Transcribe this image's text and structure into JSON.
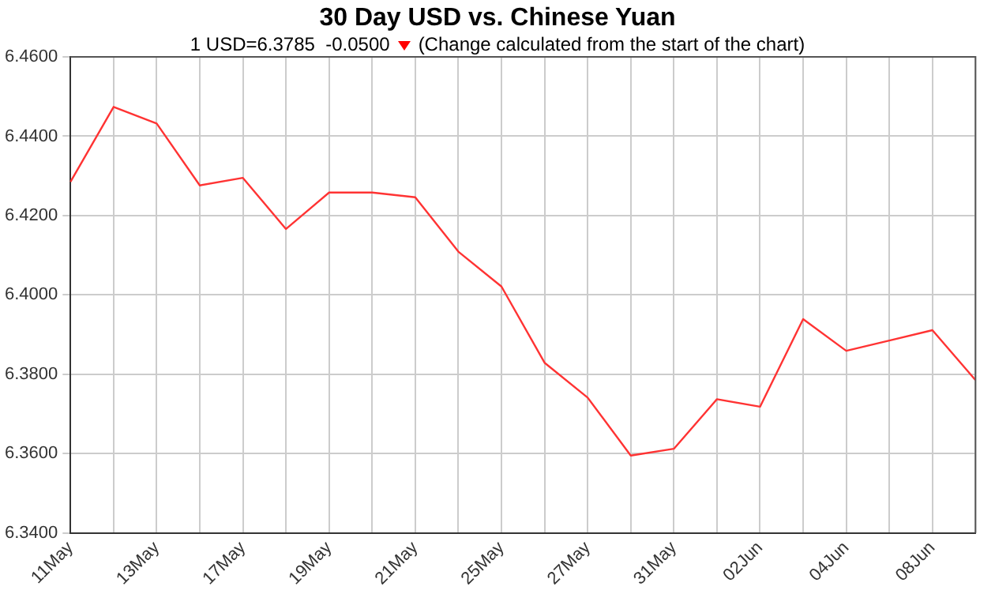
{
  "chart_data": {
    "type": "line",
    "title": "30 Day USD vs. Chinese Yuan",
    "subtitle": "1 USD=6.3785  -0.0500",
    "annotations": [
      "(Change calculated from the start of the chart)"
    ],
    "categories": [
      "11May",
      null,
      "13May",
      null,
      "17May",
      null,
      "19May",
      null,
      "21May",
      null,
      "25May",
      null,
      "27May",
      null,
      "31May",
      null,
      "02Jun",
      null,
      "04Jun",
      null,
      "08Jun",
      null
    ],
    "series": [
      {
        "color": "#ff3333",
        "values": [
          6.4285,
          6.4474,
          6.4432,
          6.4276,
          6.4295,
          6.4166,
          6.4258,
          6.4258,
          6.4246,
          6.4109,
          6.4021,
          6.3829,
          6.3741,
          6.3595,
          6.3612,
          6.3737,
          6.3718,
          6.3939,
          6.3859,
          6.3885,
          6.3911,
          6.3785
        ]
      }
    ],
    "ylim": [
      6.34,
      6.46
    ],
    "yticks": [
      {
        "value": 6.34,
        "label": "6.3400"
      },
      {
        "value": 6.36,
        "label": "6.3600"
      },
      {
        "value": 6.38,
        "label": "6.3800"
      },
      {
        "value": 6.4,
        "label": "6.4000"
      },
      {
        "value": 6.42,
        "label": "6.4200"
      },
      {
        "value": 6.44,
        "label": "6.4400"
      },
      {
        "value": 6.46,
        "label": "6.4600"
      }
    ],
    "grid": true,
    "legend": false,
    "marker": "none",
    "line_style": "solid"
  }
}
